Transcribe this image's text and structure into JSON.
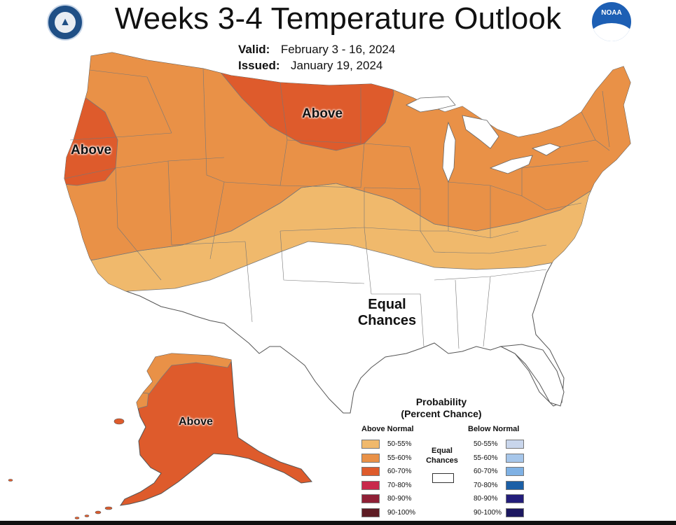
{
  "title": "Weeks 3-4 Temperature Outlook",
  "valid_label": "Valid:",
  "valid_value": "February 3 - 16, 2024",
  "issued_label": "Issued:",
  "issued_value": "January 19, 2024",
  "logos": {
    "left": "department-of-commerce-seal",
    "right_text": "NOAA"
  },
  "regions": {
    "pacific_nw": "Above",
    "northern_plains": "Above",
    "south": "Equal\nChances",
    "south_line1": "Equal",
    "south_line2": "Chances",
    "alaska": "Above"
  },
  "colors": {
    "above_50_55": "#f0b96c",
    "above_55_60": "#e99147",
    "above_60_70": "#de5b2c",
    "above_70_80": "#c8294b",
    "above_80_90": "#8f2036",
    "above_90_100": "#5d1c24",
    "below_50_55": "#c9d6ec",
    "below_55_60": "#a6c6ea",
    "below_60_70": "#7fb1e4",
    "below_70_80": "#1b5fa6",
    "below_80_90": "#231d7a",
    "below_90_100": "#1c1860"
  },
  "legend": {
    "title_line1": "Probability",
    "title_line2": "(Percent Chance)",
    "above_header": "Above Normal",
    "below_header": "Below Normal",
    "equal_line1": "Equal",
    "equal_line2": "Chances",
    "above": [
      {
        "label": "50-55%"
      },
      {
        "label": "55-60%"
      },
      {
        "label": "60-70%"
      },
      {
        "label": "70-80%"
      },
      {
        "label": "80-90%"
      },
      {
        "label": "90-100%"
      }
    ],
    "below": [
      {
        "label": "50-55%"
      },
      {
        "label": "55-60%"
      },
      {
        "label": "60-70%"
      },
      {
        "label": "70-80%"
      },
      {
        "label": "80-90%"
      },
      {
        "label": "90-100%"
      }
    ]
  }
}
